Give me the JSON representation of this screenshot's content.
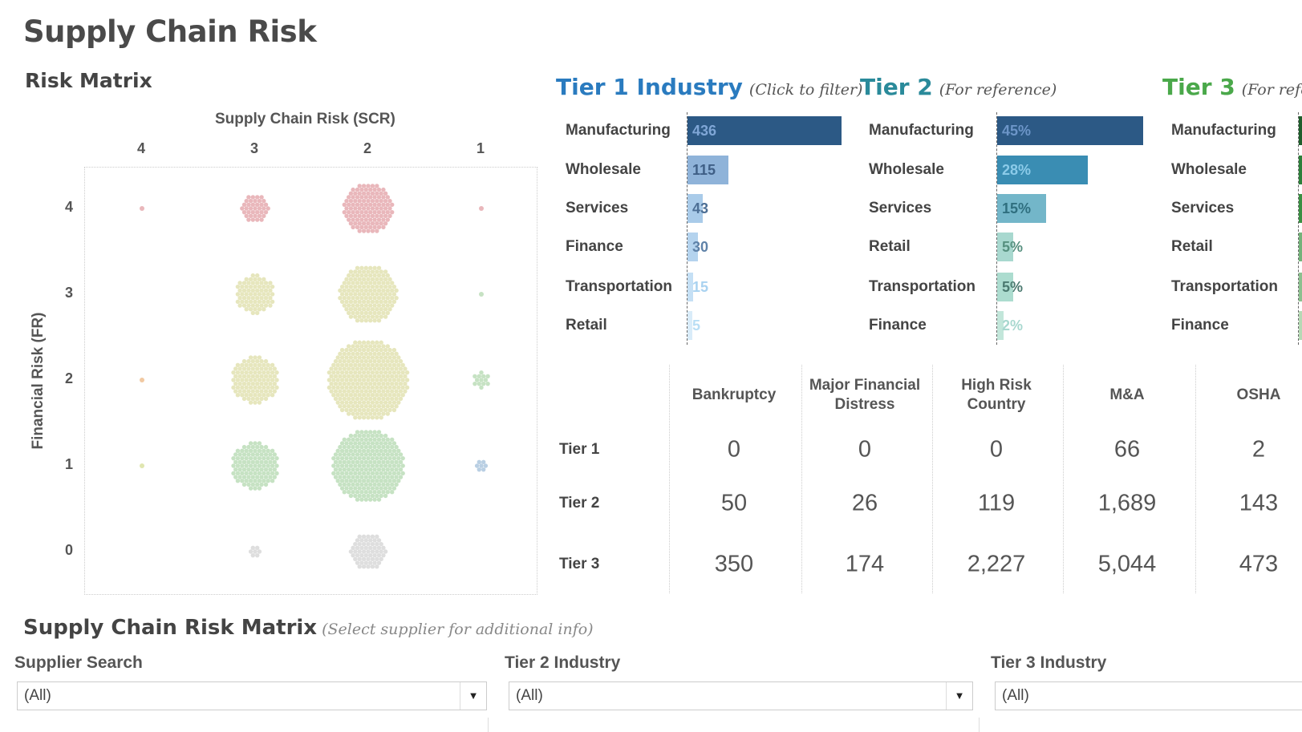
{
  "title": "Supply Chain Risk",
  "risk_matrix": {
    "title": "Risk Matrix",
    "x_title": "Supply Chain Risk (SCR)",
    "y_title": "Financial Risk (FR)",
    "x_ticks": [
      "4",
      "3",
      "2",
      "1"
    ],
    "y_ticks": [
      "4",
      "3",
      "2",
      "1",
      "0"
    ]
  },
  "chart_data": [
    {
      "type": "scatter",
      "title": "",
      "xlabel": "Supply Chain Risk (SCR)",
      "ylabel": "Financial Risk (FR)",
      "x_order": [
        4,
        3,
        2,
        1
      ],
      "y_range": [
        0,
        4
      ],
      "note_size": "relative cluster size",
      "points": [
        {
          "scr": 4,
          "fr": 4,
          "relative_size": 0.06,
          "color": "#e9b7bb"
        },
        {
          "scr": 3,
          "fr": 4,
          "relative_size": 0.36,
          "color": "#e9b7bb"
        },
        {
          "scr": 2,
          "fr": 4,
          "relative_size": 0.64,
          "color": "#e9b7bb"
        },
        {
          "scr": 1,
          "fr": 4,
          "relative_size": 0.08,
          "color": "#e9b7bb"
        },
        {
          "scr": 3,
          "fr": 3,
          "relative_size": 0.48,
          "color": "#e6e6bd"
        },
        {
          "scr": 2,
          "fr": 3,
          "relative_size": 0.72,
          "color": "#e6e6bd"
        },
        {
          "scr": 1,
          "fr": 3,
          "relative_size": 0.08,
          "color": "#c6e2c3"
        },
        {
          "scr": 4,
          "fr": 2,
          "relative_size": 0.06,
          "color": "#f1c9a2"
        },
        {
          "scr": 3,
          "fr": 2,
          "relative_size": 0.6,
          "color": "#e6e6bd"
        },
        {
          "scr": 2,
          "fr": 2,
          "relative_size": 1.0,
          "color": "#e6e6bd"
        },
        {
          "scr": 1,
          "fr": 2,
          "relative_size": 0.2,
          "color": "#c6e2c3"
        },
        {
          "scr": 4,
          "fr": 1,
          "relative_size": 0.06,
          "color": "#e0e6b0"
        },
        {
          "scr": 3,
          "fr": 1,
          "relative_size": 0.6,
          "color": "#c6e2c3"
        },
        {
          "scr": 2,
          "fr": 1,
          "relative_size": 0.92,
          "color": "#c6e2c3"
        },
        {
          "scr": 1,
          "fr": 1,
          "relative_size": 0.12,
          "color": "#b9cfe3"
        },
        {
          "scr": 3,
          "fr": 0,
          "relative_size": 0.16,
          "color": "#dedede"
        },
        {
          "scr": 2,
          "fr": 0,
          "relative_size": 0.44,
          "color": "#dedede"
        }
      ]
    },
    {
      "type": "bar",
      "title": "Tier 1 Industry",
      "categories": [
        "Manufacturing",
        "Wholesale",
        "Services",
        "Finance",
        "Transportation",
        "Retail"
      ],
      "values": [
        436,
        115,
        43,
        30,
        15,
        5
      ],
      "labels": [
        "436",
        "115",
        "43",
        "30",
        "15",
        "5"
      ],
      "colors": [
        "#2c5985",
        "#8fb3d9",
        "#a9cbe9",
        "#b4d3ee",
        "#c5e0f5",
        "#d9ecf9"
      ],
      "label_colors": [
        "#7fa6d6",
        "#3f5f86",
        "#4d6f95",
        "#5f82a8",
        "#a9d2f0",
        "#b9def5"
      ]
    },
    {
      "type": "bar",
      "title": "Tier 2",
      "categories": [
        "Manufacturing",
        "Wholesale",
        "Services",
        "Retail",
        "Transportation",
        "Finance"
      ],
      "values": [
        45,
        28,
        15,
        5,
        5,
        2
      ],
      "labels": [
        "45%",
        "28%",
        "15%",
        "5%",
        "5%",
        "2%"
      ],
      "colors": [
        "#2c5985",
        "#3a8db3",
        "#73b6c9",
        "#a8d8cf",
        "#acdccf",
        "#c2e6da"
      ],
      "label_colors": [
        "#6c95c8",
        "#8ccbe9",
        "#2f6f7f",
        "#56907f",
        "#4b7a70",
        "#a8d8cf"
      ]
    },
    {
      "type": "bar",
      "title": "Tier 3",
      "categories": [
        "Manufacturing",
        "Wholesale",
        "Services",
        "Retail",
        "Transportation",
        "Finance"
      ],
      "colors": [
        "#1f5e2c",
        "#2d7f3a",
        "#3a8f43",
        "#74b27a",
        "#8cc08f",
        "#b6d9b5"
      ]
    }
  ],
  "tiers": {
    "tier1": {
      "title": "Tier 1 Industry",
      "subtitle": "(Click to filter)",
      "color": "#2a7bbf"
    },
    "tier2": {
      "title": "Tier 2",
      "subtitle": "(For reference)",
      "color": "#2a8a9a"
    },
    "tier3": {
      "title": "Tier 3",
      "subtitle": "(For refe",
      "color": "#4aa84a"
    }
  },
  "risk_table": {
    "columns": [
      "Bankruptcy",
      "Major Financial\nDistress",
      "High Risk\nCountry",
      "M&A",
      "OSHA"
    ],
    "rows": [
      {
        "label": "Tier 1",
        "values": [
          "0",
          "0",
          "0",
          "66",
          "2"
        ]
      },
      {
        "label": "Tier 2",
        "values": [
          "50",
          "26",
          "119",
          "1,689",
          "143"
        ]
      },
      {
        "label": "Tier 3",
        "values": [
          "350",
          "174",
          "2,227",
          "5,044",
          "473"
        ]
      }
    ]
  },
  "bottom": {
    "title": "Supply Chain Risk Matrix",
    "subtitle": "(Select supplier for additional info)",
    "filters": [
      {
        "label": "Supplier Search",
        "value": "(All)"
      },
      {
        "label": "Tier 2 Industry",
        "value": "(All)"
      },
      {
        "label": "Tier 3 Industry",
        "value": "(All)"
      }
    ]
  }
}
